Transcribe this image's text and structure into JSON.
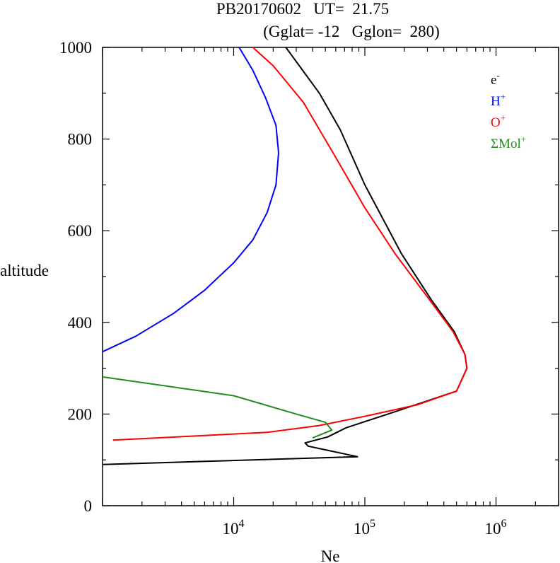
{
  "chart_data": {
    "type": "line",
    "title_line1": "PB20170602   UT=  21.75",
    "title_line2": "(Gglat= -12   Gglon=  280)",
    "xlabel": "Ne",
    "ylabel": "altitude",
    "x_scale": "log",
    "xlim": [
      1000,
      3000000
    ],
    "ylim": [
      0,
      1000
    ],
    "x_ticks": [
      {
        "base": "10",
        "exp": "4",
        "value": 10000
      },
      {
        "base": "10",
        "exp": "5",
        "value": 100000
      },
      {
        "base": "10",
        "exp": "6",
        "value": 1000000
      }
    ],
    "y_ticks": [
      "0",
      "200",
      "400",
      "600",
      "800",
      "1000"
    ],
    "grid": false,
    "legend_position": "top-right",
    "series": [
      {
        "name": "e-",
        "label_base": "e",
        "label_sup": "-",
        "color": "#000000",
        "points": [
          [
            1000,
            90
          ],
          [
            88000,
            107
          ],
          [
            37000,
            130
          ],
          [
            35000,
            137
          ],
          [
            52000,
            150
          ],
          [
            72000,
            170
          ],
          [
            150000,
            200
          ],
          [
            500000,
            250
          ],
          [
            600000,
            300
          ],
          [
            580000,
            330
          ],
          [
            480000,
            380
          ],
          [
            320000,
            450
          ],
          [
            190000,
            550
          ],
          [
            100000,
            700
          ],
          [
            65000,
            820
          ],
          [
            45000,
            900
          ],
          [
            25000,
            1000
          ]
        ]
      },
      {
        "name": "H+",
        "label_base": "H",
        "label_sup": "+",
        "color": "#0000ff",
        "points": [
          [
            1000,
            336
          ],
          [
            1800,
            370
          ],
          [
            3500,
            420
          ],
          [
            6000,
            470
          ],
          [
            10000,
            530
          ],
          [
            14000,
            580
          ],
          [
            18000,
            640
          ],
          [
            21000,
            700
          ],
          [
            22000,
            770
          ],
          [
            21000,
            830
          ],
          [
            17500,
            890
          ],
          [
            14000,
            950
          ],
          [
            11000,
            1000
          ]
        ]
      },
      {
        "name": "O+",
        "label_base": "O",
        "label_sup": "+",
        "color": "#ff0000",
        "points": [
          [
            1200,
            143
          ],
          [
            18000,
            160
          ],
          [
            45000,
            175
          ],
          [
            100000,
            195
          ],
          [
            250000,
            220
          ],
          [
            500000,
            250
          ],
          [
            600000,
            300
          ],
          [
            580000,
            330
          ],
          [
            470000,
            380
          ],
          [
            310000,
            450
          ],
          [
            170000,
            550
          ],
          [
            100000,
            650
          ],
          [
            60000,
            760
          ],
          [
            34000,
            880
          ],
          [
            20000,
            960
          ],
          [
            14000,
            1000
          ]
        ]
      },
      {
        "name": "ΣMol+",
        "label_base": "ΣMol",
        "label_sup": "+",
        "color": "#228b22",
        "points": [
          [
            1000,
            281
          ],
          [
            10000,
            240
          ],
          [
            30000,
            200
          ],
          [
            50000,
            182
          ],
          [
            56000,
            165
          ],
          [
            40000,
            148
          ]
        ]
      }
    ]
  }
}
